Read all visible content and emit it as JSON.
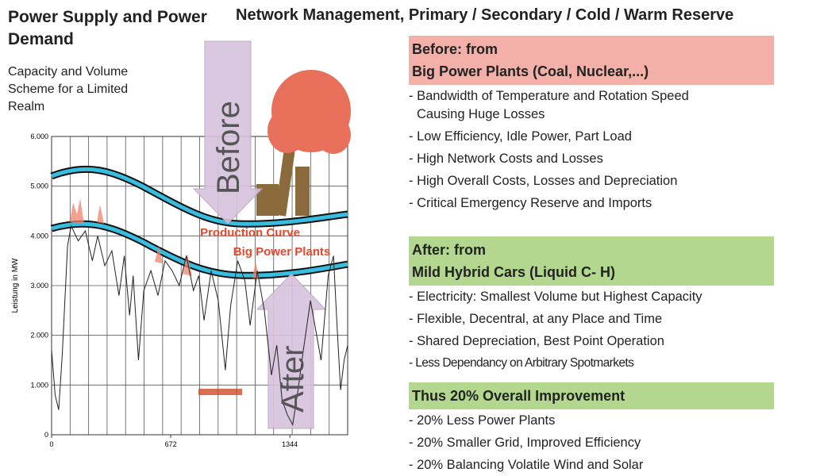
{
  "header": {
    "left_title": "Power Supply and Power Demand",
    "subtitle": "Capacity and Volume Scheme for a Limited Realm",
    "right_title": "Network Management, Primary / Secondary / Cold / Warm Reserve"
  },
  "chart_data": {
    "type": "line",
    "y_label": "Leistung in MW",
    "color": "#222222",
    "x": [
      0,
      20,
      40,
      60,
      90,
      110,
      150,
      190,
      230,
      260,
      300,
      340,
      380,
      410,
      440,
      460,
      490,
      520,
      560,
      600,
      640,
      680,
      720,
      760,
      800,
      830,
      860,
      900,
      940,
      980,
      1010,
      1050,
      1090,
      1120,
      1160,
      1200,
      1240,
      1270,
      1300,
      1330,
      1360,
      1390,
      1420,
      1460,
      1490,
      1520,
      1560,
      1590,
      1610,
      1630,
      1650,
      1670
    ],
    "values": [
      1700,
      800,
      500,
      1600,
      3800,
      4200,
      3900,
      4100,
      3500,
      4000,
      3400,
      3700,
      2800,
      3600,
      2400,
      3200,
      1500,
      2900,
      3300,
      2800,
      3500,
      3300,
      3000,
      3600,
      2900,
      3200,
      2300,
      3300,
      2700,
      1300,
      2600,
      3500,
      3100,
      2200,
      3300,
      2500,
      1200,
      1800,
      700,
      400,
      200,
      900,
      1700,
      2700,
      2100,
      1500,
      3200,
      3600,
      2200,
      900,
      1500,
      1800
    ],
    "xlim": [
      0,
      1670
    ],
    "xticks": [
      0,
      672,
      1344
    ],
    "ylim": [
      0,
      6000
    ],
    "yticks": [
      0,
      {
        "value": 1000,
        "label": "1.000"
      },
      {
        "value": 2000,
        "label": "2.000"
      },
      {
        "value": 3000,
        "label": "3.000"
      },
      {
        "value": 4000,
        "label": "4.000"
      },
      {
        "value": 5000,
        "label": "5.000"
      },
      {
        "value": 6000,
        "label": "6.000"
      }
    ],
    "grid": true,
    "annotations": [
      "Production Curve",
      "Big Power Plants",
      "Before",
      "After"
    ]
  },
  "sections": [
    {
      "heading": [
        "Before: from",
        "Big Power Plants (Coal, Nuclear,...)"
      ],
      "color": "#f2b0a8",
      "items": [
        "- Bandwidth of Temperature and Rotation Speed Causing Huge Losses",
        "- Low Efficiency, Idle Power, Part Load",
        "- High Network Costs and Losses",
        "- High Overall Costs, Losses and Depreciation",
        "- Critical Emergency Reserve and Imports"
      ]
    },
    {
      "heading": [
        "After: from",
        "Mild Hybrid Cars (Liquid C- H)"
      ],
      "color": "#b3d78f",
      "items": [
        "- Electricity: Smallest Volume but Highest Capacity",
        "- Flexible, Decentral, at any Place and Time",
        "- Shared Depreciation, Best Point Operation",
        "- Less Dependancy on Arbitrary Spotmarkets"
      ]
    },
    {
      "heading": [
        "Thus 20% Overall Improvement"
      ],
      "color": "#b3d78f",
      "items": [
        "- 20% Less Power Plants",
        "- 20% Smaller Grid, Improved Efficiency",
        "- 20% Balancing Volatile Wind and Solar"
      ]
    }
  ]
}
